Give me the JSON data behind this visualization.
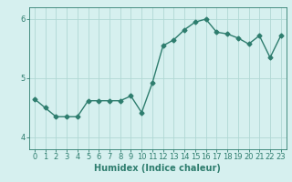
{
  "x": [
    0,
    1,
    2,
    3,
    4,
    5,
    6,
    7,
    8,
    9,
    10,
    11,
    12,
    13,
    14,
    15,
    16,
    17,
    18,
    19,
    20,
    21,
    22,
    23
  ],
  "y": [
    4.65,
    4.5,
    4.35,
    4.35,
    4.35,
    4.62,
    4.62,
    4.62,
    4.62,
    4.7,
    4.42,
    4.92,
    5.55,
    5.65,
    5.82,
    5.95,
    6.0,
    5.78,
    5.75,
    5.68,
    5.58,
    5.72,
    5.35,
    5.72
  ],
  "line_color": "#2e7d6e",
  "bg_color": "#d6f0ef",
  "grid_color": "#b0d8d4",
  "xlabel": "Humidex (Indice chaleur)",
  "ylim": [
    3.8,
    6.2
  ],
  "xlim": [
    -0.5,
    23.5
  ],
  "yticks": [
    4,
    5,
    6
  ],
  "xticks": [
    0,
    1,
    2,
    3,
    4,
    5,
    6,
    7,
    8,
    9,
    10,
    11,
    12,
    13,
    14,
    15,
    16,
    17,
    18,
    19,
    20,
    21,
    22,
    23
  ],
  "label_fontsize": 7,
  "tick_fontsize": 6,
  "marker": "D",
  "marker_size": 2.5,
  "line_width": 1.0
}
